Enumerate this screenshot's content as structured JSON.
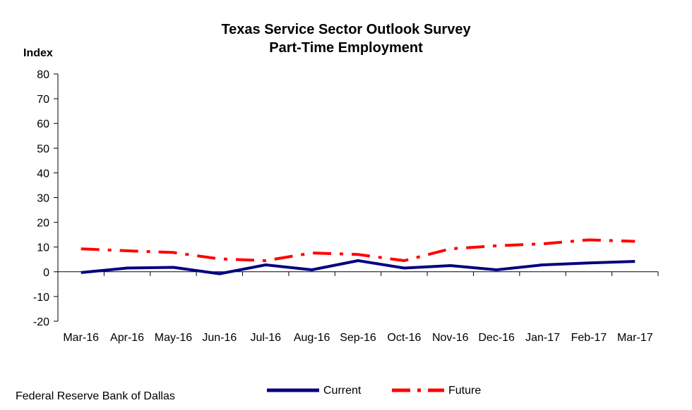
{
  "chart_data": {
    "type": "line",
    "title": "Texas Service Sector Outlook Survey",
    "subtitle": "Part-Time Employment",
    "ylabel": "Index",
    "xlabel": "",
    "ylim": [
      -20,
      80
    ],
    "yticks": [
      -20,
      -10,
      0,
      10,
      20,
      30,
      40,
      50,
      60,
      70,
      80
    ],
    "categories": [
      "Mar-16",
      "Apr-16",
      "May-16",
      "Jun-16",
      "Jul-16",
      "Aug-16",
      "Sep-16",
      "Oct-16",
      "Nov-16",
      "Dec-16",
      "Jan-17",
      "Feb-17",
      "Mar-17"
    ],
    "series": [
      {
        "name": "Current",
        "color": "#000080",
        "style": "solid",
        "values": [
          -0.3,
          1.5,
          1.8,
          -0.8,
          2.8,
          0.8,
          4.5,
          1.5,
          2.5,
          0.8,
          2.8,
          3.6,
          4.2
        ]
      },
      {
        "name": "Future",
        "color": "#ff0000",
        "style": "dash-dot",
        "values": [
          9.3,
          8.5,
          7.8,
          5.2,
          4.5,
          7.6,
          7.0,
          4.5,
          9.3,
          10.5,
          11.3,
          12.9,
          12.3
        ]
      }
    ],
    "grid": false,
    "legend": "bottom"
  },
  "footer": {
    "source": "Federal Reserve Bank of Dallas"
  }
}
